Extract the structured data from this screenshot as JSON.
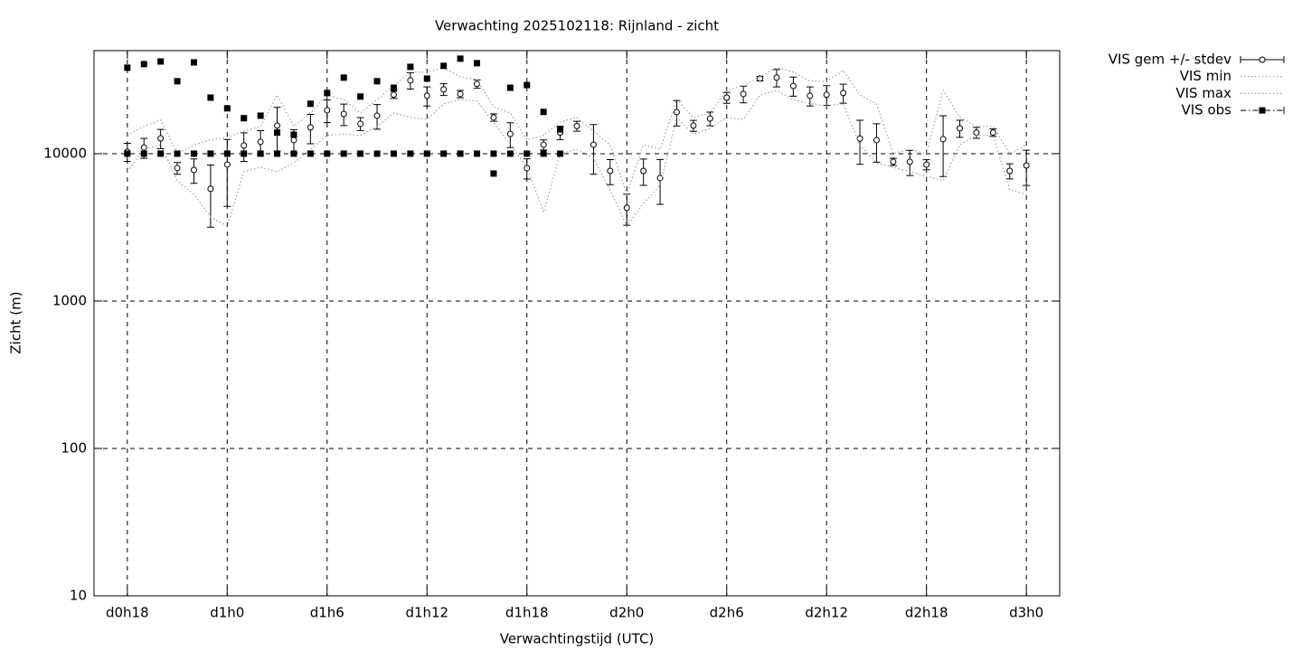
{
  "chart_data": {
    "type": "line",
    "title": "Verwachting 2025102118: Rijnland - zicht",
    "xlabel": "Verwachtingstijd (UTC)",
    "ylabel": "Zicht (m)",
    "log_y": true,
    "grid": true,
    "legend": "upper right",
    "xlim": [
      16,
      74
    ],
    "xticks": [
      {
        "value": 18,
        "label": "d0h18"
      },
      {
        "value": 24,
        "label": "d1h0"
      },
      {
        "value": 30,
        "label": "d1h6"
      },
      {
        "value": 36,
        "label": "d1h12"
      },
      {
        "value": 42,
        "label": "d1h18"
      },
      {
        "value": 48,
        "label": "d2h0"
      },
      {
        "value": 54,
        "label": "d2h6"
      },
      {
        "value": 60,
        "label": "d2h12"
      },
      {
        "value": 66,
        "label": "d2h18"
      },
      {
        "value": 72,
        "label": "d3h0"
      }
    ],
    "ylim": [
      10,
      50000
    ],
    "yticks": [
      10,
      100,
      1000,
      10000
    ],
    "x": [
      18,
      19,
      20,
      21,
      22,
      23,
      24,
      25,
      26,
      27,
      28,
      29,
      30,
      31,
      32,
      33,
      34,
      35,
      36,
      37,
      38,
      39,
      40,
      41,
      42,
      43,
      44,
      45,
      46,
      47,
      48,
      49,
      50,
      51,
      52,
      53,
      54,
      55,
      56,
      57,
      58,
      59,
      60,
      61,
      62,
      63,
      64,
      65,
      66,
      67,
      68,
      69,
      70,
      71,
      72
    ],
    "series": [
      {
        "name": "VIS gem +/- stdev",
        "style": "errorbar",
        "color": "#000000",
        "values": [
          10300,
          11000,
          12700,
          7980,
          7750,
          5770,
          8440,
          11360,
          12020,
          15500,
          12360,
          15080,
          19700,
          18600,
          15940,
          18100,
          25100,
          31400,
          24700,
          27300,
          25400,
          29700,
          17600,
          13600,
          7980,
          11500,
          13900,
          15400,
          11500,
          7640,
          4290,
          7640,
          6830,
          19150,
          15500,
          17300,
          24000,
          25400,
          32300,
          32800,
          28800,
          24700,
          25100,
          25800,
          12660,
          12360,
          8810,
          8810,
          8440,
          12540,
          14870,
          13900,
          13900,
          7640,
          8320
        ],
        "stdev": [
          1450,
          1700,
          1900,
          730,
          1460,
          2600,
          4050,
          2500,
          2300,
          5100,
          2200,
          3400,
          3450,
          3100,
          1600,
          3450,
          1400,
          3950,
          3650,
          2500,
          1450,
          1950,
          1000,
          2600,
          1250,
          900,
          1450,
          1200,
          4250,
          1480,
          1020,
          1550,
          2300,
          3750,
          1330,
          1850,
          2050,
          3300,
          1150,
          4450,
          4250,
          3650,
          3850,
          3800,
          4200,
          3600,
          500,
          1700,
          660,
          5550,
          1970,
          1190,
          800,
          900,
          2240
        ]
      },
      {
        "name": "VIS min",
        "style": "dotted",
        "color": "#a0a0a0",
        "values": [
          7540,
          10700,
          11500,
          6550,
          5300,
          3720,
          3230,
          7540,
          8090,
          7540,
          8680,
          10700,
          13300,
          13600,
          13300,
          15300,
          18900,
          17600,
          17100,
          21800,
          23300,
          22700,
          16400,
          11500,
          8090,
          4000,
          10000,
          10700,
          9320,
          5680,
          3230,
          4600,
          6100,
          17600,
          13600,
          14850,
          17600,
          17100,
          25000,
          26900,
          23300,
          21800,
          21100,
          21800,
          11500,
          8680,
          8090,
          7540,
          7030,
          6550,
          11500,
          13300,
          13300,
          5680,
          5300
        ]
      },
      {
        "name": "VIS max",
        "style": "dotted",
        "color": "#a0a0a0",
        "values": [
          13300,
          15300,
          16900,
          10000,
          11500,
          12400,
          12900,
          14200,
          15300,
          25000,
          15300,
          18900,
          25000,
          23300,
          18900,
          23300,
          28900,
          35700,
          35700,
          38300,
          33200,
          31800,
          20800,
          18900,
          12400,
          13300,
          16400,
          17600,
          14200,
          11500,
          5300,
          11500,
          10700,
          23300,
          17600,
          18900,
          26900,
          28900,
          33200,
          38300,
          35700,
          31000,
          31000,
          36700,
          25000,
          21800,
          10000,
          10700,
          10000,
          26900,
          17600,
          15300,
          15300,
          10000,
          11500
        ]
      },
      {
        "name": "VIS obs",
        "style": "points",
        "color": "#000000",
        "x": [
          18,
          19,
          20,
          21,
          22,
          23,
          24,
          25,
          26,
          27,
          28,
          29,
          30,
          31,
          32,
          33,
          34,
          35,
          36,
          37,
          38,
          39,
          40,
          41,
          42,
          43,
          44,
          18,
          19,
          20,
          21,
          22,
          23,
          24,
          25,
          26,
          27,
          28,
          29,
          30,
          31,
          32,
          33,
          34,
          35,
          36,
          37,
          38,
          39,
          40,
          41,
          42,
          43,
          44
        ],
        "values": [
          38300,
          40500,
          42200,
          31000,
          41600,
          24000,
          20300,
          17400,
          18100,
          13900,
          13450,
          21800,
          25800,
          32800,
          24400,
          31000,
          28000,
          38800,
          32300,
          39400,
          44100,
          41100,
          7330,
          28000,
          29200,
          19200,
          14600,
          10000,
          10000,
          10000,
          10000,
          10000,
          10000,
          10000,
          10000,
          10000,
          10000,
          10000,
          10000,
          10000,
          10000,
          10000,
          10000,
          10000,
          10000,
          10000,
          10000,
          10000,
          10000,
          10000,
          10000,
          10000,
          10000,
          10000
        ]
      }
    ]
  }
}
